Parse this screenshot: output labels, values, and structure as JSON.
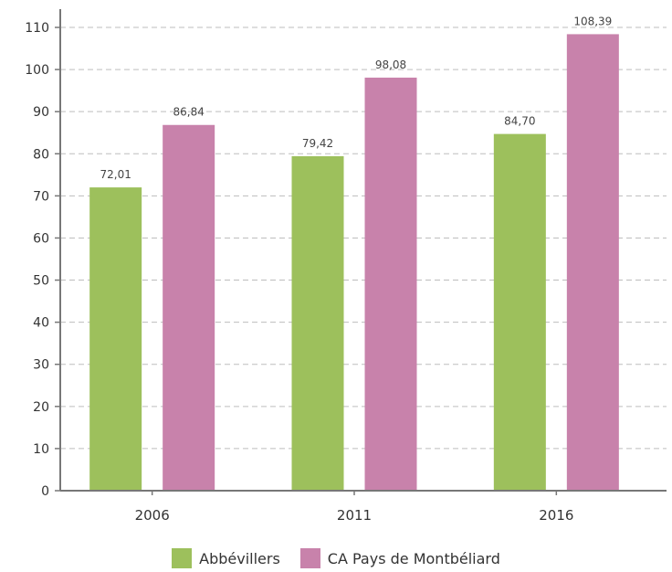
{
  "chart_data": {
    "type": "bar",
    "categories": [
      "2006",
      "2011",
      "2016"
    ],
    "series": [
      {
        "name": "Abbévillers",
        "values": [
          72.01,
          79.42,
          84.7
        ],
        "labels": [
          "72,01",
          "79,42",
          "84,70"
        ],
        "color": "#9dc05c"
      },
      {
        "name": "CA Pays de Montbéliard",
        "values": [
          86.84,
          98.08,
          108.39
        ],
        "labels": [
          "86,84",
          "98,08",
          "108,39"
        ],
        "color": "#c882ab"
      }
    ],
    "ylim": [
      0,
      110
    ],
    "yticks": [
      0,
      10,
      20,
      30,
      40,
      50,
      60,
      70,
      80,
      90,
      100,
      110
    ],
    "grid": true,
    "legend": "bottom-center"
  }
}
